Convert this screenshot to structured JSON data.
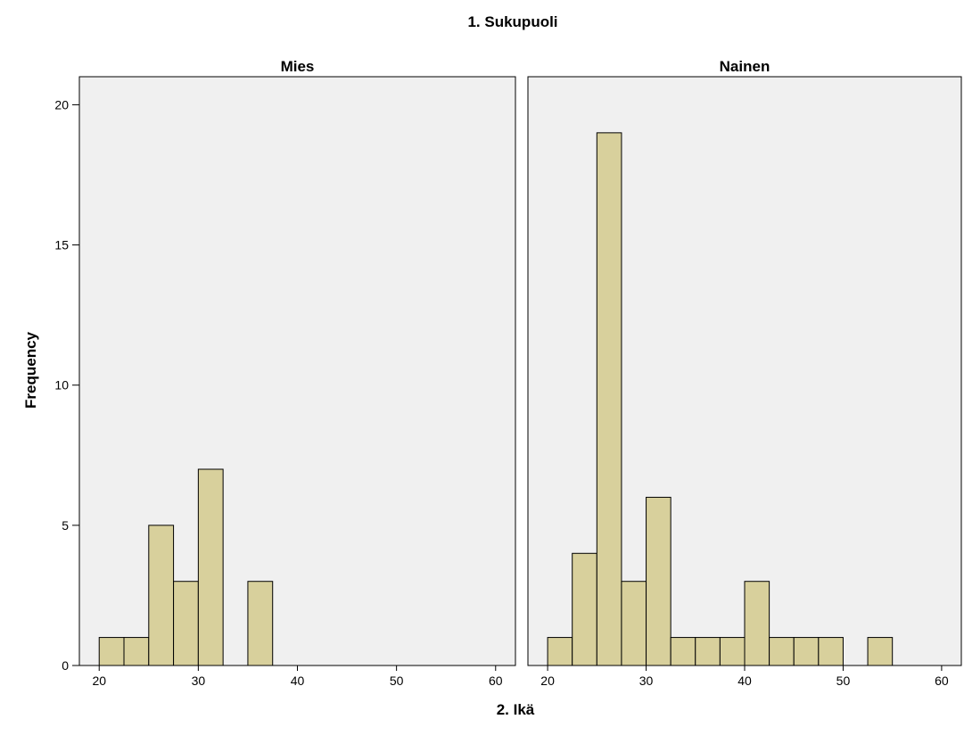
{
  "chart_data": {
    "type": "bar",
    "title": "1. Sukupuoli",
    "xlabel": "2. Ikä",
    "ylabel": "Frequency",
    "grid": false,
    "bar_color": "#d8d09c",
    "panel_color": "#f0f0f0",
    "bin_width": 2.5,
    "xlim": [
      18,
      62
    ],
    "ylim": [
      0,
      21
    ],
    "xticks": [
      "20",
      "30",
      "40",
      "50",
      "60"
    ],
    "yticks": [
      "0",
      "5",
      "10",
      "15",
      "20"
    ],
    "bin_starts": [
      20,
      22.5,
      25,
      27.5,
      30,
      32.5,
      35,
      37.5,
      40,
      42.5,
      45,
      47.5,
      50,
      52.5
    ],
    "panels": [
      {
        "name": "Mies",
        "values": [
          1,
          1,
          5,
          3,
          7,
          0,
          3,
          0,
          0,
          0,
          0,
          0,
          0,
          0
        ]
      },
      {
        "name": "Nainen",
        "values": [
          1,
          4,
          19,
          3,
          6,
          1,
          1,
          1,
          3,
          1,
          1,
          1,
          0,
          1
        ]
      }
    ]
  }
}
